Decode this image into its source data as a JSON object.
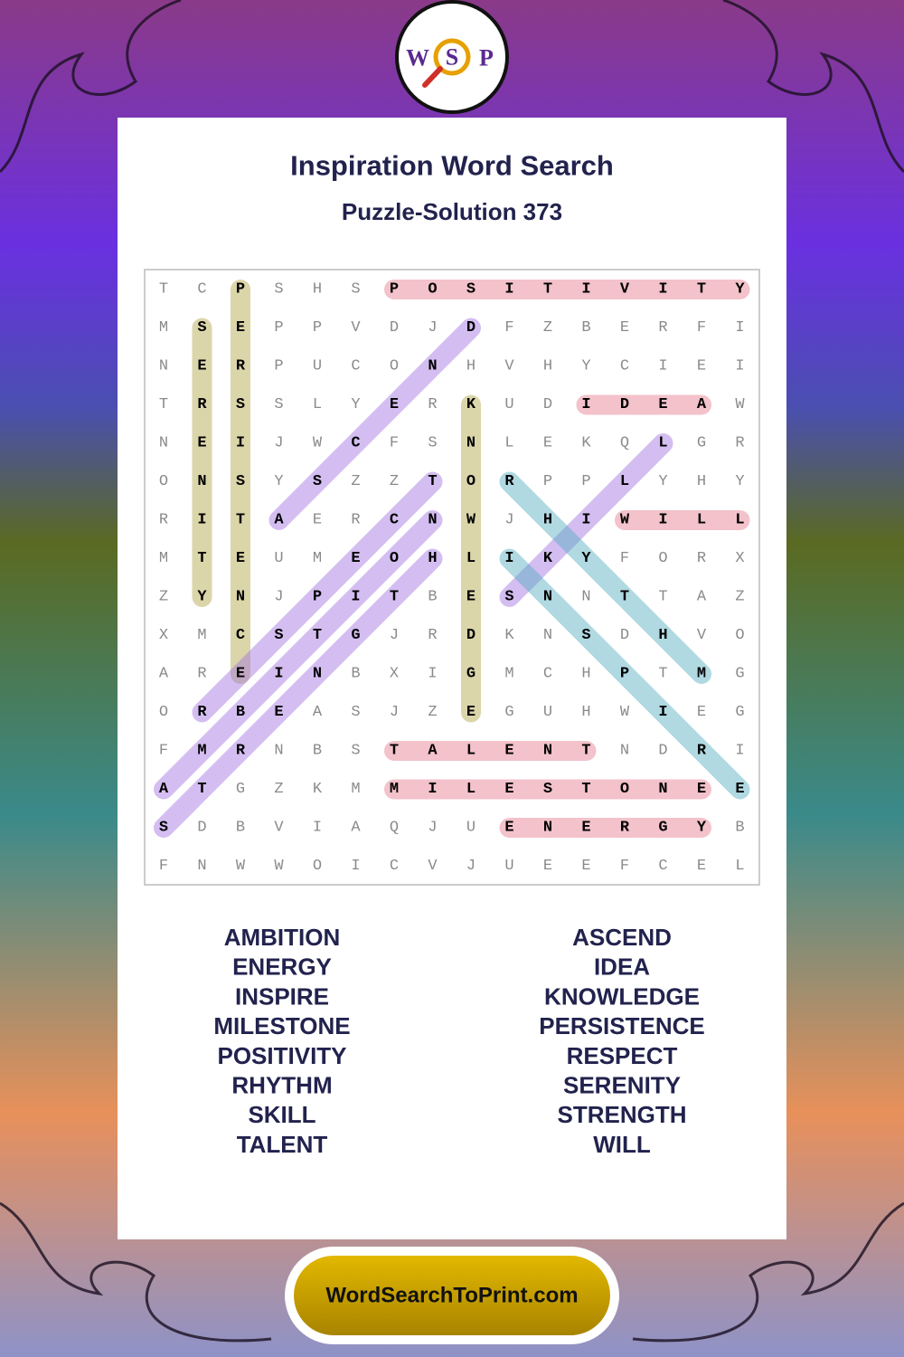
{
  "logo": {
    "letters": [
      "W",
      "S",
      "P"
    ]
  },
  "header": {
    "title": "Inspiration Word Search",
    "subtitle": "Puzzle-Solution 373"
  },
  "grid": {
    "rows": [
      [
        "T",
        "C",
        "P",
        "S",
        "H",
        "S",
        "P",
        "O",
        "S",
        "I",
        "T",
        "I",
        "V",
        "I",
        "T",
        "Y"
      ],
      [
        "M",
        "S",
        "E",
        "P",
        "P",
        "V",
        "D",
        "J",
        "D",
        "F",
        "Z",
        "B",
        "E",
        "R",
        "F",
        "I"
      ],
      [
        "N",
        "E",
        "R",
        "P",
        "U",
        "C",
        "O",
        "N",
        "H",
        "V",
        "H",
        "Y",
        "C",
        "I",
        "E",
        "I"
      ],
      [
        "T",
        "R",
        "S",
        "S",
        "L",
        "Y",
        "E",
        "R",
        "K",
        "U",
        "D",
        "I",
        "D",
        "E",
        "A",
        "W"
      ],
      [
        "N",
        "E",
        "I",
        "J",
        "W",
        "C",
        "F",
        "S",
        "N",
        "L",
        "E",
        "K",
        "Q",
        "L",
        "G",
        "R"
      ],
      [
        "O",
        "N",
        "S",
        "Y",
        "S",
        "Z",
        "Z",
        "T",
        "O",
        "R",
        "P",
        "P",
        "L",
        "Y",
        "H",
        "Y"
      ],
      [
        "R",
        "I",
        "T",
        "A",
        "E",
        "R",
        "C",
        "N",
        "W",
        "J",
        "H",
        "I",
        "W",
        "I",
        "L",
        "L"
      ],
      [
        "M",
        "T",
        "E",
        "U",
        "M",
        "E",
        "O",
        "H",
        "L",
        "I",
        "K",
        "Y",
        "F",
        "O",
        "R",
        "X"
      ],
      [
        "Z",
        "Y",
        "N",
        "J",
        "P",
        "I",
        "T",
        "B",
        "E",
        "S",
        "N",
        "N",
        "T",
        "T",
        "A",
        "Z"
      ],
      [
        "X",
        "M",
        "C",
        "S",
        "T",
        "G",
        "J",
        "R",
        "D",
        "K",
        "N",
        "S",
        "D",
        "H",
        "V",
        "O"
      ],
      [
        "A",
        "R",
        "E",
        "I",
        "N",
        "B",
        "X",
        "I",
        "G",
        "M",
        "C",
        "H",
        "P",
        "T",
        "M",
        "G"
      ],
      [
        "O",
        "R",
        "B",
        "E",
        "A",
        "S",
        "J",
        "Z",
        "E",
        "G",
        "U",
        "H",
        "W",
        "I",
        "E",
        "G"
      ],
      [
        "F",
        "M",
        "R",
        "N",
        "B",
        "S",
        "T",
        "A",
        "L",
        "E",
        "N",
        "T",
        "N",
        "D",
        "R",
        "I"
      ],
      [
        "A",
        "T",
        "G",
        "Z",
        "K",
        "M",
        "M",
        "I",
        "L",
        "E",
        "S",
        "T",
        "O",
        "N",
        "E",
        "E"
      ],
      [
        "S",
        "D",
        "B",
        "V",
        "I",
        "A",
        "Q",
        "J",
        "U",
        "E",
        "N",
        "E",
        "R",
        "G",
        "Y",
        "B"
      ],
      [
        "F",
        "N",
        "W",
        "W",
        "O",
        "I",
        "C",
        "V",
        "J",
        "U",
        "E",
        "E",
        "F",
        "C",
        "E",
        "L"
      ]
    ]
  },
  "words": {
    "left": [
      "AMBITION",
      "ENERGY",
      "INSPIRE",
      "MILESTONE",
      "POSITIVITY",
      "RHYTHM",
      "SKILL",
      "TALENT"
    ],
    "right": [
      "ASCEND",
      "IDEA",
      "KNOWLEDGE",
      "PERSISTENCE",
      "RESPECT",
      "SERENITY",
      "STRENGTH",
      "WILL"
    ]
  },
  "footer": {
    "url": "WordSearchToPrint.com"
  }
}
